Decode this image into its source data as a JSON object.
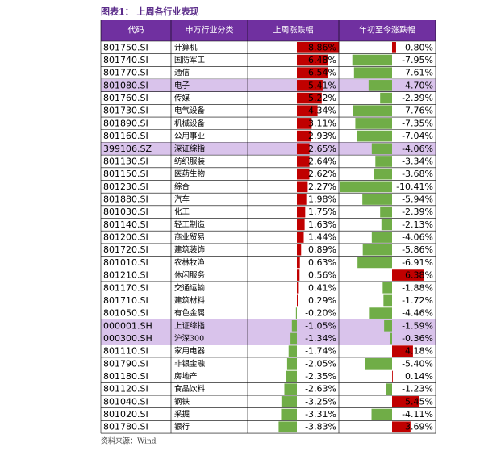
{
  "title": "图表1： 上周各行业表现",
  "table": {
    "header": [
      "代码",
      "申万行业分类",
      "上周涨跌幅",
      "年初至今涨跌幅"
    ],
    "rows": [
      {
        "code": "801750.SI",
        "name": "计算机",
        "week": "8.86%",
        "ytd": "0.80%"
      },
      {
        "code": "801740.SI",
        "name": "国防军工",
        "week": "6.48%",
        "ytd": "-7.95%"
      },
      {
        "code": "801770.SI",
        "name": "通信",
        "week": "6.54%",
        "ytd": "-7.61%"
      },
      {
        "code": "801080.SI",
        "name": "电子",
        "week": "5.41%",
        "ytd": "-4.70%",
        "highlight": true
      },
      {
        "code": "801760.SI",
        "name": "传媒",
        "week": "5.22%",
        "ytd": "-2.39%"
      },
      {
        "code": "801730.SI",
        "name": "电气设备",
        "week": "4.34%",
        "ytd": "-7.76%"
      },
      {
        "code": "801890.SI",
        "name": "机械设备",
        "week": "3.11%",
        "ytd": "-7.35%"
      },
      {
        "code": "801160.SI",
        "name": "公用事业",
        "week": "2.93%",
        "ytd": "-7.04%"
      },
      {
        "code": "399106.SZ",
        "name": "深证综指",
        "week": "2.65%",
        "ytd": "-4.06%",
        "highlight": true
      },
      {
        "code": "801130.SI",
        "name": "纺织服装",
        "week": "2.64%",
        "ytd": "-3.34%"
      },
      {
        "code": "801150.SI",
        "name": "医药生物",
        "week": "2.62%",
        "ytd": "-3.68%"
      },
      {
        "code": "801230.SI",
        "name": "综合",
        "week": "2.27%",
        "ytd": "-10.41%"
      },
      {
        "code": "801880.SI",
        "name": "汽车",
        "week": "1.98%",
        "ytd": "-5.94%"
      },
      {
        "code": "801030.SI",
        "name": "化工",
        "week": "1.75%",
        "ytd": "-2.39%"
      },
      {
        "code": "801140.SI",
        "name": "轻工制造",
        "week": "1.63%",
        "ytd": "-2.13%"
      },
      {
        "code": "801200.SI",
        "name": "商业贸易",
        "week": "1.44%",
        "ytd": "-4.06%"
      },
      {
        "code": "801720.SI",
        "name": "建筑装饰",
        "week": "0.89%",
        "ytd": "-5.86%"
      },
      {
        "code": "801010.SI",
        "name": "农林牧渔",
        "week": "0.63%",
        "ytd": "-6.91%"
      },
      {
        "code": "801210.SI",
        "name": "休闲服务",
        "week": "0.56%",
        "ytd": "6.38%"
      },
      {
        "code": "801170.SI",
        "name": "交通运输",
        "week": "0.41%",
        "ytd": "-1.88%"
      },
      {
        "code": "801710.SI",
        "name": "建筑材料",
        "week": "0.29%",
        "ytd": "-1.72%"
      },
      {
        "code": "801050.SI",
        "name": "有色金属",
        "week": "-0.20%",
        "ytd": "-4.46%"
      },
      {
        "code": "000001.SH",
        "name": "上证综指",
        "week": "-1.05%",
        "ytd": "-1.59%",
        "highlight": true
      },
      {
        "code": "000300.SH",
        "name": "沪深300",
        "week": "-1.34%",
        "ytd": "-0.36%",
        "highlight": true
      },
      {
        "code": "801110.SI",
        "name": "家用电器",
        "week": "-1.74%",
        "ytd": "4.18%"
      },
      {
        "code": "801790.SI",
        "name": "非银金融",
        "week": "-2.05%",
        "ytd": "-5.40%"
      },
      {
        "code": "801180.SI",
        "name": "房地产",
        "week": "-2.35%",
        "ytd": "0.14%"
      },
      {
        "code": "801120.SI",
        "name": "食品饮料",
        "week": "-2.63%",
        "ytd": "-1.23%"
      },
      {
        "code": "801040.SI",
        "name": "钢铁",
        "week": "-3.25%",
        "ytd": "5.45%"
      },
      {
        "code": "801020.SI",
        "name": "采掘",
        "week": "-3.31%",
        "ytd": "-4.11%"
      },
      {
        "code": "801780.SI",
        "name": "银行",
        "week": "-3.83%",
        "ytd": "3.69%"
      }
    ]
  },
  "source": "资料来源：Wind"
}
